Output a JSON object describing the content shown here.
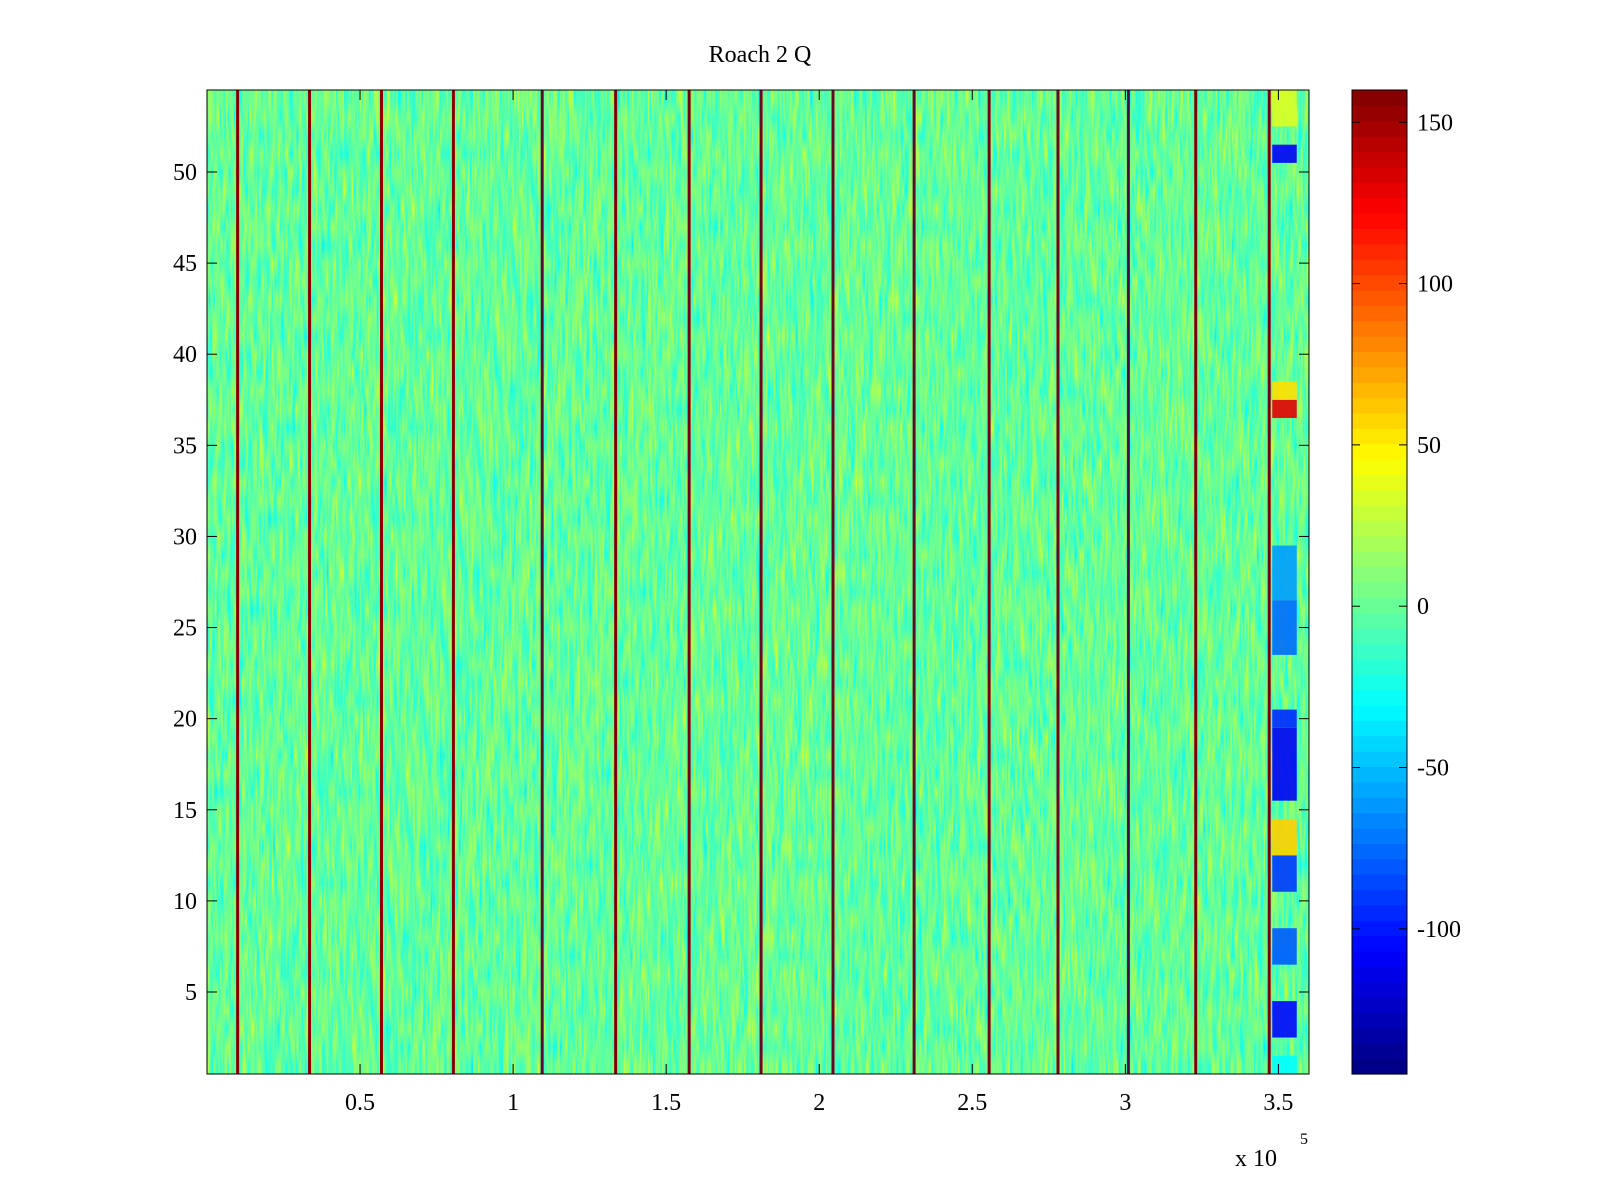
{
  "chart_data": {
    "type": "heatmap",
    "title": "Roach 2 Q",
    "xlabel": "",
    "ylabel": "",
    "x_multiplier_label": {
      "base": "x 10",
      "exponent": "5"
    },
    "xlim": [
      0,
      3.6
    ],
    "ylim": [
      0.5,
      54.5
    ],
    "x_ticks": [
      0.5,
      1,
      1.5,
      2,
      2.5,
      3,
      3.5
    ],
    "x_tick_labels": [
      "0.5",
      "1",
      "1.5",
      "2",
      "2.5",
      "3",
      "3.5"
    ],
    "y_ticks": [
      5,
      10,
      15,
      20,
      25,
      30,
      35,
      40,
      45,
      50
    ],
    "y_tick_labels": [
      "5",
      "10",
      "15",
      "20",
      "25",
      "30",
      "35",
      "40",
      "45",
      "50"
    ],
    "rows": 54,
    "colormap": "jet",
    "clim": [
      -145,
      160
    ],
    "colorbar_ticks": [
      150,
      100,
      50,
      0,
      -50,
      -100
    ],
    "colorbar_tick_labels": [
      "150",
      "100",
      "50",
      "0",
      "-50",
      "-100"
    ],
    "background_value_range": [
      -40,
      30
    ],
    "background_typical_value": 0,
    "vertical_stripe_x": [
      0.1,
      0.335,
      0.57,
      0.805,
      1.095,
      1.335,
      1.575,
      1.81,
      2.045,
      2.31,
      2.555,
      2.78,
      3.01,
      3.23,
      3.47
    ],
    "stripe_value": 155,
    "right_edge_segment": {
      "x_range": [
        3.48,
        3.56
      ],
      "cells": [
        {
          "rows": [
            1,
            1
          ],
          "value": -30
        },
        {
          "rows": [
            3,
            4
          ],
          "value": -105
        },
        {
          "rows": [
            7,
            8
          ],
          "value": -80
        },
        {
          "rows": [
            11,
            12
          ],
          "value": -90
        },
        {
          "rows": [
            13,
            14
          ],
          "value": 60
        },
        {
          "rows": [
            16,
            19
          ],
          "value": -110
        },
        {
          "rows": [
            20,
            20
          ],
          "value": -95
        },
        {
          "rows": [
            24,
            26
          ],
          "value": -75
        },
        {
          "rows": [
            27,
            29
          ],
          "value": -60
        },
        {
          "rows": [
            37,
            37
          ],
          "value": 130
        },
        {
          "rows": [
            38,
            38
          ],
          "value": 55
        },
        {
          "rows": [
            51,
            51
          ],
          "value": -110
        },
        {
          "rows": [
            53,
            54
          ],
          "value": 35
        }
      ]
    }
  }
}
